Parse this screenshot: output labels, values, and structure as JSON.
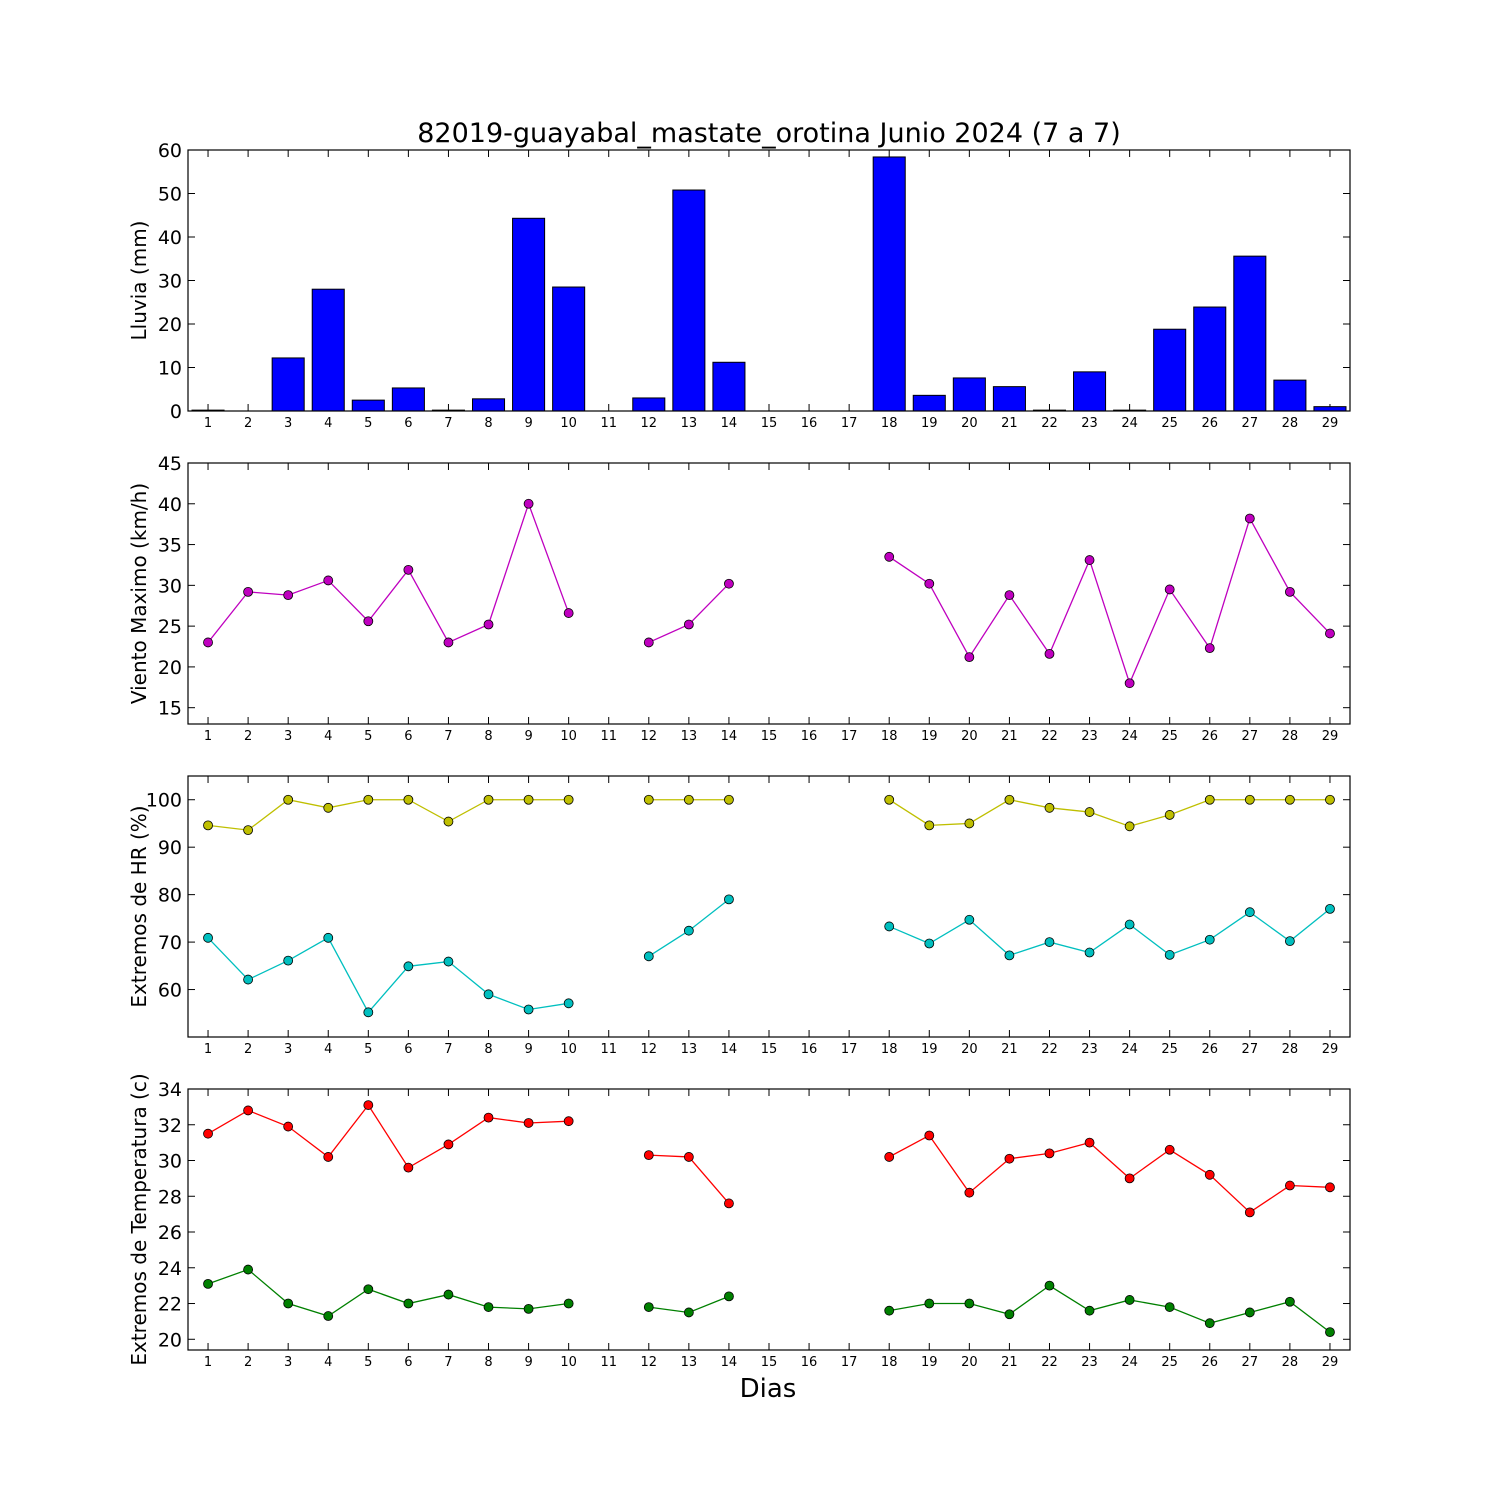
{
  "title": "82019-guayabal_mastate_orotina Junio 2024  (7 a 7)",
  "xlabel": "Dias",
  "chart_data": [
    {
      "type": "bar",
      "ylabel": "Lluvia (mm)",
      "ylim": [
        0,
        60
      ],
      "yticks": [
        0,
        10,
        20,
        30,
        40,
        50,
        60
      ],
      "x": [
        1,
        2,
        3,
        4,
        5,
        6,
        7,
        8,
        9,
        10,
        11,
        12,
        13,
        14,
        15,
        16,
        17,
        18,
        19,
        20,
        21,
        22,
        23,
        24,
        25,
        26,
        27,
        28,
        29
      ],
      "series": [
        {
          "color": "#0000ff",
          "values": [
            0.2,
            0,
            12.2,
            28.0,
            2.5,
            5.3,
            0.2,
            2.8,
            44.3,
            28.5,
            0,
            3.0,
            50.8,
            11.2,
            0,
            0,
            0,
            58.4,
            3.6,
            7.6,
            5.6,
            0.2,
            9.0,
            0.2,
            18.8,
            23.9,
            35.6,
            7.1,
            1.0
          ]
        }
      ]
    },
    {
      "type": "line",
      "ylabel": "Viento Maximo (km/h)",
      "ylim": [
        13,
        45
      ],
      "yticks": [
        15,
        20,
        25,
        30,
        35,
        40,
        45
      ],
      "x": [
        1,
        2,
        3,
        4,
        5,
        6,
        7,
        8,
        9,
        10,
        11,
        12,
        13,
        14,
        15,
        16,
        17,
        18,
        19,
        20,
        21,
        22,
        23,
        24,
        25,
        26,
        27,
        28,
        29
      ],
      "series": [
        {
          "color": "#bf00bf",
          "values": [
            23.0,
            29.2,
            28.8,
            30.6,
            25.6,
            31.9,
            23.0,
            25.2,
            40.0,
            26.6,
            null,
            23.0,
            25.2,
            30.2,
            null,
            null,
            null,
            33.5,
            30.2,
            21.2,
            28.8,
            21.6,
            33.1,
            18.0,
            29.5,
            22.3,
            38.2,
            29.2,
            24.1
          ]
        }
      ]
    },
    {
      "type": "line",
      "ylabel": "Extremos de HR (%)",
      "ylim": [
        50,
        105
      ],
      "yticks": [
        60,
        70,
        80,
        90,
        100
      ],
      "x": [
        1,
        2,
        3,
        4,
        5,
        6,
        7,
        8,
        9,
        10,
        11,
        12,
        13,
        14,
        15,
        16,
        17,
        18,
        19,
        20,
        21,
        22,
        23,
        24,
        25,
        26,
        27,
        28,
        29
      ],
      "series": [
        {
          "color": "#bfbf00",
          "values": [
            94.6,
            93.6,
            100,
            98.3,
            100,
            100,
            95.4,
            100,
            100,
            100,
            null,
            100,
            100,
            100,
            null,
            null,
            null,
            100,
            94.6,
            95.0,
            100,
            98.3,
            97.4,
            94.4,
            96.8,
            100,
            100,
            100,
            100
          ]
        },
        {
          "color": "#00bfbf",
          "values": [
            70.9,
            62.1,
            66.1,
            70.9,
            55.2,
            64.9,
            65.9,
            59.0,
            55.8,
            57.1,
            null,
            67.0,
            72.4,
            79.0,
            null,
            null,
            null,
            73.3,
            69.7,
            74.7,
            67.2,
            70.0,
            67.8,
            73.7,
            67.3,
            70.5,
            76.3,
            70.2,
            77.0
          ]
        }
      ]
    },
    {
      "type": "line",
      "ylabel": "Extremos de Temperatura (c)",
      "ylim": [
        19.4,
        34
      ],
      "yticks": [
        20,
        22,
        24,
        26,
        28,
        30,
        32,
        34
      ],
      "x": [
        1,
        2,
        3,
        4,
        5,
        6,
        7,
        8,
        9,
        10,
        11,
        12,
        13,
        14,
        15,
        16,
        17,
        18,
        19,
        20,
        21,
        22,
        23,
        24,
        25,
        26,
        27,
        28,
        29
      ],
      "series": [
        {
          "color": "#ff0000",
          "values": [
            31.5,
            32.8,
            31.9,
            30.2,
            33.1,
            29.6,
            30.9,
            32.4,
            32.1,
            32.2,
            null,
            30.3,
            30.2,
            27.6,
            null,
            null,
            null,
            30.2,
            31.4,
            28.2,
            30.1,
            30.4,
            31.0,
            29.0,
            30.6,
            29.2,
            27.1,
            28.6,
            28.5
          ]
        },
        {
          "color": "#008000",
          "values": [
            23.1,
            23.9,
            22.0,
            21.3,
            22.8,
            22.0,
            22.5,
            21.8,
            21.7,
            22.0,
            null,
            21.8,
            21.5,
            22.4,
            null,
            null,
            null,
            21.6,
            22.0,
            22.0,
            21.4,
            23.0,
            21.6,
            22.2,
            21.8,
            20.9,
            21.5,
            22.1,
            20.4
          ]
        }
      ]
    }
  ]
}
